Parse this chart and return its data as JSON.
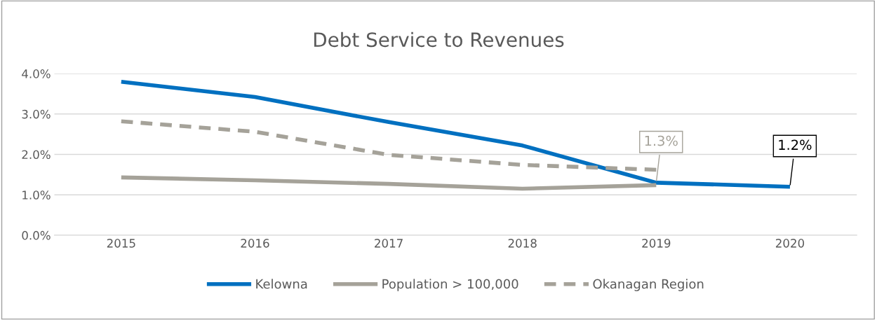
{
  "chart_data": {
    "type": "line",
    "title": "Debt Service to Revenues",
    "categories": [
      "2015",
      "2016",
      "2017",
      "2018",
      "2019",
      "2020"
    ],
    "series": [
      {
        "name": "Kelowna",
        "color": "#0070c0",
        "values": [
          3.8,
          3.42,
          2.8,
          2.22,
          1.3,
          1.2
        ],
        "line_style": "solid"
      },
      {
        "name": "Population > 100,000",
        "color": "#a5a299",
        "values": [
          1.43,
          1.36,
          1.27,
          1.15,
          1.24,
          null
        ],
        "line_style": "solid"
      },
      {
        "name": "Okanagan Region",
        "color": "#a5a299",
        "values": [
          2.82,
          2.56,
          1.99,
          1.74,
          1.62,
          null
        ],
        "line_style": "dashed"
      }
    ],
    "ylim": [
      0,
      4
    ],
    "yticks": [
      {
        "value": 0,
        "label": "0.0%"
      },
      {
        "value": 1,
        "label": "1.0%"
      },
      {
        "value": 2,
        "label": "2.0%"
      },
      {
        "value": 3,
        "label": "3.0%"
      },
      {
        "value": 4,
        "label": "4.0%"
      }
    ],
    "annotations": [
      {
        "text": "1.3%",
        "x": "2019",
        "y": 1.3
      },
      {
        "text": "1.2%",
        "x": "2020",
        "y": 1.2
      }
    ],
    "grid": "y",
    "legend": "bottom",
    "marker": "none"
  }
}
